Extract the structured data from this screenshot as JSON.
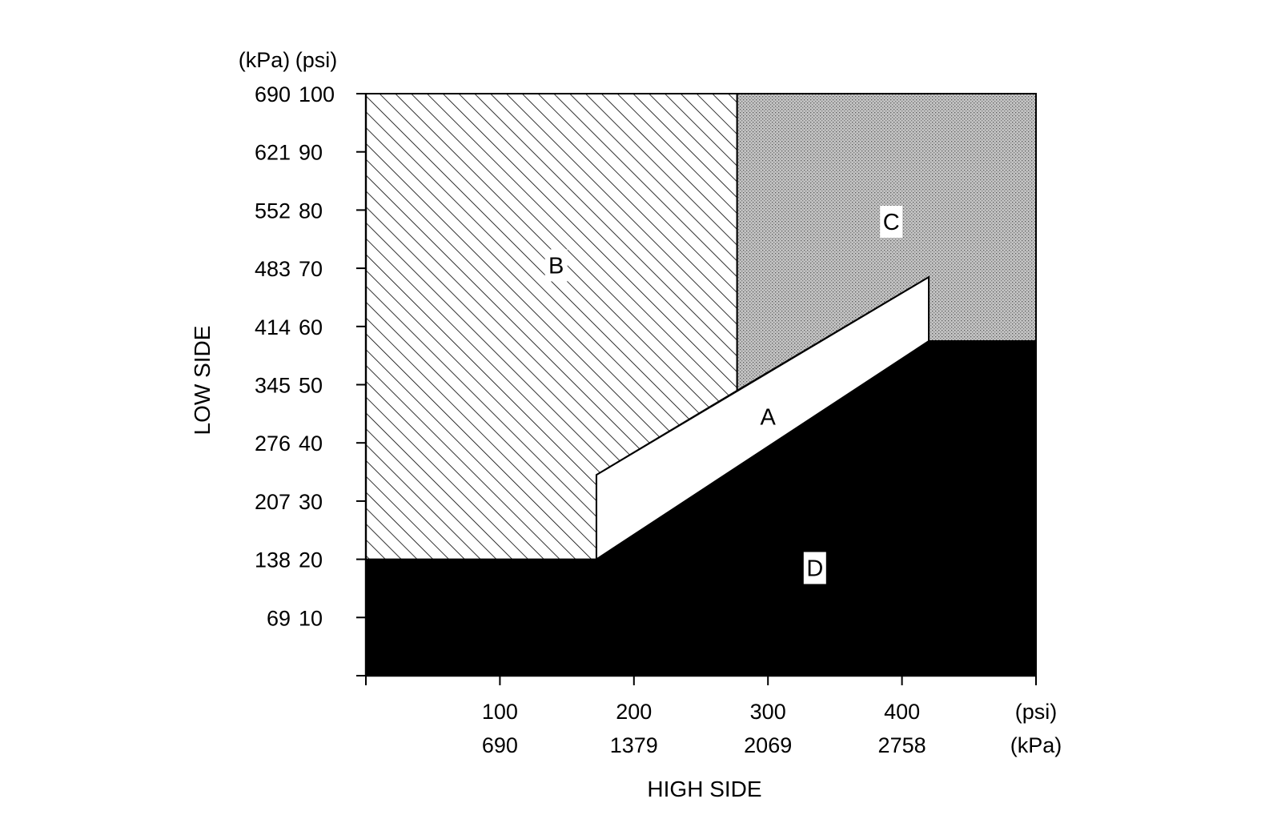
{
  "chart_data": {
    "type": "area",
    "title": "",
    "xlabel": "HIGH SIDE",
    "ylabel": "LOW SIDE",
    "x_unit_labels": [
      "(psi)",
      "(kPa)"
    ],
    "y_unit_labels": [
      "(kPa)",
      "(psi)"
    ],
    "xlim": [
      0,
      500
    ],
    "ylim": [
      0,
      100
    ],
    "x_ticks": [
      {
        "psi": 100,
        "psi_label": "100",
        "kpa_label": "690"
      },
      {
        "psi": 200,
        "psi_label": "200",
        "kpa_label": "1379"
      },
      {
        "psi": 300,
        "psi_label": "300",
        "kpa_label": "2069"
      },
      {
        "psi": 400,
        "psi_label": "400",
        "kpa_label": "2758"
      }
    ],
    "y_ticks": [
      {
        "psi": 10,
        "psi_label": "10",
        "kpa_label": "69"
      },
      {
        "psi": 20,
        "psi_label": "20",
        "kpa_label": "138"
      },
      {
        "psi": 30,
        "psi_label": "30",
        "kpa_label": "207"
      },
      {
        "psi": 40,
        "psi_label": "40",
        "kpa_label": "276"
      },
      {
        "psi": 50,
        "psi_label": "50",
        "kpa_label": "345"
      },
      {
        "psi": 60,
        "psi_label": "60",
        "kpa_label": "414"
      },
      {
        "psi": 70,
        "psi_label": "70",
        "kpa_label": "483"
      },
      {
        "psi": 80,
        "psi_label": "80",
        "kpa_label": "552"
      },
      {
        "psi": 90,
        "psi_label": "90",
        "kpa_label": "621"
      },
      {
        "psi": 100,
        "psi_label": "100",
        "kpa_label": "690"
      }
    ],
    "regions": [
      {
        "label": "D",
        "fill": "solid",
        "color": "#000000",
        "polygon": [
          [
            0,
            0
          ],
          [
            0,
            20
          ],
          [
            172,
            20
          ],
          [
            420,
            57.5
          ],
          [
            500,
            57.5
          ],
          [
            500,
            0
          ]
        ],
        "label_at": [
          335,
          18.5
        ]
      },
      {
        "label": "A",
        "fill": "white",
        "color": "#ffffff",
        "polygon": [
          [
            172,
            20
          ],
          [
            172,
            34.5
          ],
          [
            420,
            68.5
          ],
          [
            420,
            57.5
          ]
        ],
        "label_at": [
          300,
          44.5
        ]
      },
      {
        "label": "B",
        "fill": "hatch",
        "color": "#000000",
        "polygon": [
          [
            0,
            20
          ],
          [
            0,
            100
          ],
          [
            277,
            100
          ],
          [
            277,
            49
          ],
          [
            172,
            34.5
          ],
          [
            172,
            20
          ]
        ],
        "label_at": [
          142,
          70.5
        ]
      },
      {
        "label": "C",
        "fill": "stipple",
        "color": "#b5b5b5",
        "polygon": [
          [
            277,
            100
          ],
          [
            500,
            100
          ],
          [
            500,
            57.5
          ],
          [
            420,
            57.5
          ],
          [
            420,
            68.5
          ],
          [
            277,
            49
          ]
        ],
        "label_at": [
          392,
          78
        ]
      }
    ],
    "grid": false
  }
}
